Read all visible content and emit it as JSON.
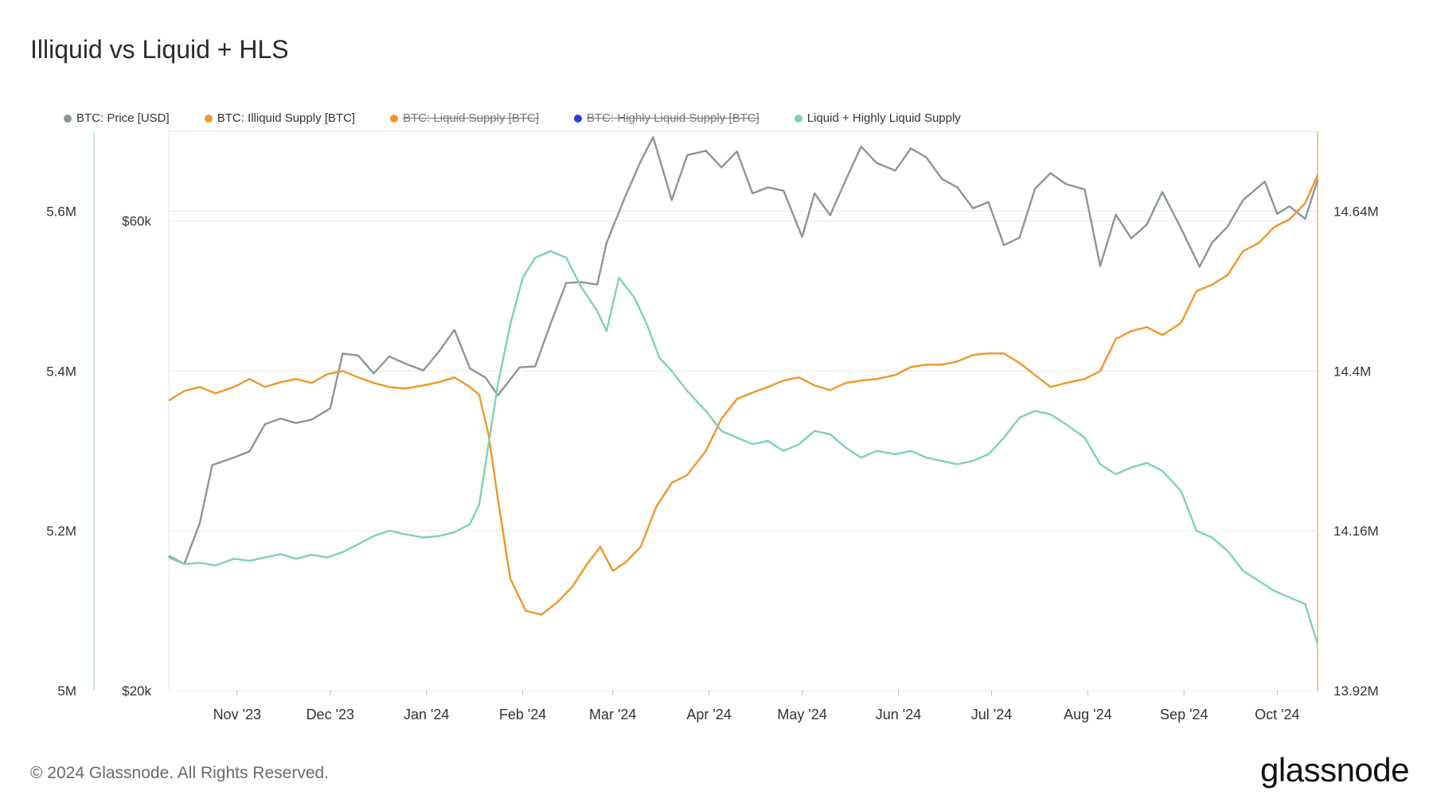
{
  "title": "Illiquid vs Liquid + HLS",
  "legend": [
    {
      "label": "BTC: Price [USD]",
      "color": "#8a959c",
      "hidden": false
    },
    {
      "label": "BTC: Illiquid Supply [BTC]",
      "color": "#f0962a",
      "hidden": false
    },
    {
      "label": "BTC: Liquid Supply [BTC]",
      "color": "#f0962a",
      "hidden": true
    },
    {
      "label": "BTC: Highly Liquid Supply [BTC]",
      "color": "#2a3fd8",
      "hidden": true
    },
    {
      "label": "Liquid + Highly Liquid Supply",
      "color": "#7dd3b0",
      "hidden": false
    }
  ],
  "footer": "© 2024 Glassnode. All Rights Reserved.",
  "brand": "glassnode",
  "chart_data": {
    "type": "line",
    "x_ticks": [
      "Nov '23",
      "Dec '23",
      "Jan '24",
      "Feb '24",
      "Mar '24",
      "Apr '24",
      "May '24",
      "Jun '24",
      "Jul '24",
      "Aug '24",
      "Sep '24",
      "Oct '24"
    ],
    "x_range": [
      "2023-10-10",
      "2024-10-14"
    ],
    "left_axis_outer": {
      "ticks": [
        "5M",
        "5.2M",
        "5.4M",
        "5.6M"
      ],
      "range": [
        5000000,
        5700000
      ]
    },
    "left_axis_inner": {
      "ticks": [
        "$20k",
        "$60k"
      ],
      "range": [
        20000,
        74000
      ],
      "scale": "log"
    },
    "right_axis": {
      "ticks": [
        "13.92M",
        "14.16M",
        "14.4M",
        "14.64M"
      ],
      "range": [
        13920000,
        14760000
      ]
    },
    "grid": true,
    "series": [
      {
        "name": "BTC: Price [USD]",
        "axis": "price",
        "color": "#8a959c",
        "points": [
          [
            "2023-10-10",
            27400
          ],
          [
            "2023-10-15",
            26900
          ],
          [
            "2023-10-20",
            29600
          ],
          [
            "2023-10-24",
            33900
          ],
          [
            "2023-10-31",
            34500
          ],
          [
            "2023-11-05",
            35000
          ],
          [
            "2023-11-10",
            37300
          ],
          [
            "2023-11-15",
            37800
          ],
          [
            "2023-11-20",
            37400
          ],
          [
            "2023-11-25",
            37700
          ],
          [
            "2023-12-01",
            38700
          ],
          [
            "2023-12-05",
            44000
          ],
          [
            "2023-12-10",
            43800
          ],
          [
            "2023-12-15",
            42000
          ],
          [
            "2023-12-20",
            43700
          ],
          [
            "2023-12-25",
            43000
          ],
          [
            "2023-12-31",
            42300
          ],
          [
            "2024-01-05",
            44200
          ],
          [
            "2024-01-10",
            46500
          ],
          [
            "2024-01-15",
            42500
          ],
          [
            "2024-01-20",
            41600
          ],
          [
            "2024-01-24",
            39900
          ],
          [
            "2024-01-31",
            42600
          ],
          [
            "2024-02-05",
            42700
          ],
          [
            "2024-02-10",
            47200
          ],
          [
            "2024-02-15",
            51900
          ],
          [
            "2024-02-20",
            52000
          ],
          [
            "2024-02-25",
            51700
          ],
          [
            "2024-02-28",
            57000
          ],
          [
            "2024-03-05",
            63500
          ],
          [
            "2024-03-10",
            69000
          ],
          [
            "2024-03-14",
            73000
          ],
          [
            "2024-03-20",
            63000
          ],
          [
            "2024-03-25",
            70000
          ],
          [
            "2024-03-31",
            70700
          ],
          [
            "2024-04-05",
            68000
          ],
          [
            "2024-04-10",
            70600
          ],
          [
            "2024-04-15",
            64000
          ],
          [
            "2024-04-20",
            64900
          ],
          [
            "2024-04-25",
            64400
          ],
          [
            "2024-05-01",
            57800
          ],
          [
            "2024-05-05",
            64000
          ],
          [
            "2024-05-10",
            60800
          ],
          [
            "2024-05-15",
            66000
          ],
          [
            "2024-05-20",
            71400
          ],
          [
            "2024-05-25",
            68700
          ],
          [
            "2024-05-31",
            67500
          ],
          [
            "2024-06-05",
            71100
          ],
          [
            "2024-06-10",
            69600
          ],
          [
            "2024-06-15",
            66200
          ],
          [
            "2024-06-20",
            64900
          ],
          [
            "2024-06-25",
            61800
          ],
          [
            "2024-06-30",
            62700
          ],
          [
            "2024-07-05",
            56700
          ],
          [
            "2024-07-10",
            57700
          ],
          [
            "2024-07-15",
            64700
          ],
          [
            "2024-07-20",
            67100
          ],
          [
            "2024-07-25",
            65400
          ],
          [
            "2024-07-31",
            64600
          ],
          [
            "2024-08-05",
            54000
          ],
          [
            "2024-08-10",
            60900
          ],
          [
            "2024-08-15",
            57600
          ],
          [
            "2024-08-20",
            59500
          ],
          [
            "2024-08-25",
            64200
          ],
          [
            "2024-08-31",
            59000
          ],
          [
            "2024-09-06",
            53900
          ],
          [
            "2024-09-10",
            57000
          ],
          [
            "2024-09-15",
            59200
          ],
          [
            "2024-09-20",
            63000
          ],
          [
            "2024-09-27",
            65800
          ],
          [
            "2024-10-01",
            61000
          ],
          [
            "2024-10-05",
            62100
          ],
          [
            "2024-10-10",
            60300
          ],
          [
            "2024-10-14",
            66000
          ]
        ]
      },
      {
        "name": "BTC: Illiquid Supply [BTC]",
        "axis": "left",
        "color": "#f0962a",
        "points": [
          [
            "2023-10-10",
            5363000
          ],
          [
            "2023-10-15",
            5375000
          ],
          [
            "2023-10-20",
            5380000
          ],
          [
            "2023-10-25",
            5372000
          ],
          [
            "2023-10-31",
            5380000
          ],
          [
            "2023-11-05",
            5390000
          ],
          [
            "2023-11-10",
            5380000
          ],
          [
            "2023-11-15",
            5386000
          ],
          [
            "2023-11-20",
            5390000
          ],
          [
            "2023-11-25",
            5385000
          ],
          [
            "2023-11-30",
            5396000
          ],
          [
            "2023-12-05",
            5400000
          ],
          [
            "2023-12-10",
            5392000
          ],
          [
            "2023-12-15",
            5385000
          ],
          [
            "2023-12-20",
            5380000
          ],
          [
            "2023-12-25",
            5378000
          ],
          [
            "2023-12-31",
            5382000
          ],
          [
            "2024-01-05",
            5386000
          ],
          [
            "2024-01-10",
            5392000
          ],
          [
            "2024-01-15",
            5380000
          ],
          [
            "2024-01-18",
            5370000
          ],
          [
            "2024-01-21",
            5320000
          ],
          [
            "2024-01-24",
            5240000
          ],
          [
            "2024-01-28",
            5140000
          ],
          [
            "2024-02-02",
            5100000
          ],
          [
            "2024-02-07",
            5095000
          ],
          [
            "2024-02-12",
            5110000
          ],
          [
            "2024-02-17",
            5130000
          ],
          [
            "2024-02-22",
            5160000
          ],
          [
            "2024-02-26",
            5180000
          ],
          [
            "2024-03-01",
            5150000
          ],
          [
            "2024-03-05",
            5160000
          ],
          [
            "2024-03-10",
            5180000
          ],
          [
            "2024-03-15",
            5230000
          ],
          [
            "2024-03-20",
            5260000
          ],
          [
            "2024-03-25",
            5270000
          ],
          [
            "2024-03-31",
            5300000
          ],
          [
            "2024-04-05",
            5340000
          ],
          [
            "2024-04-10",
            5365000
          ],
          [
            "2024-04-15",
            5373000
          ],
          [
            "2024-04-20",
            5380000
          ],
          [
            "2024-04-25",
            5388000
          ],
          [
            "2024-04-30",
            5392000
          ],
          [
            "2024-05-05",
            5382000
          ],
          [
            "2024-05-10",
            5376000
          ],
          [
            "2024-05-15",
            5385000
          ],
          [
            "2024-05-20",
            5388000
          ],
          [
            "2024-05-25",
            5390000
          ],
          [
            "2024-05-31",
            5395000
          ],
          [
            "2024-06-05",
            5405000
          ],
          [
            "2024-06-10",
            5408000
          ],
          [
            "2024-06-15",
            5408000
          ],
          [
            "2024-06-20",
            5412000
          ],
          [
            "2024-06-25",
            5420000
          ],
          [
            "2024-06-30",
            5422000
          ],
          [
            "2024-07-05",
            5422000
          ],
          [
            "2024-07-10",
            5410000
          ],
          [
            "2024-07-15",
            5395000
          ],
          [
            "2024-07-20",
            5380000
          ],
          [
            "2024-07-25",
            5385000
          ],
          [
            "2024-07-31",
            5390000
          ],
          [
            "2024-08-05",
            5400000
          ],
          [
            "2024-08-10",
            5440000
          ],
          [
            "2024-08-15",
            5450000
          ],
          [
            "2024-08-20",
            5455000
          ],
          [
            "2024-08-25",
            5445000
          ],
          [
            "2024-08-31",
            5460000
          ],
          [
            "2024-09-05",
            5500000
          ],
          [
            "2024-09-10",
            5508000
          ],
          [
            "2024-09-15",
            5520000
          ],
          [
            "2024-09-20",
            5550000
          ],
          [
            "2024-09-25",
            5560000
          ],
          [
            "2024-09-30",
            5580000
          ],
          [
            "2024-10-05",
            5590000
          ],
          [
            "2024-10-10",
            5610000
          ],
          [
            "2024-10-14",
            5645000
          ]
        ]
      },
      {
        "name": "Liquid + Highly Liquid Supply",
        "axis": "right",
        "color": "#7dd3b0",
        "points": [
          [
            "2023-10-10",
            14120000
          ],
          [
            "2023-10-15",
            14110000
          ],
          [
            "2023-10-20",
            14112000
          ],
          [
            "2023-10-25",
            14108000
          ],
          [
            "2023-10-31",
            14118000
          ],
          [
            "2023-11-05",
            14115000
          ],
          [
            "2023-11-10",
            14120000
          ],
          [
            "2023-11-15",
            14125000
          ],
          [
            "2023-11-20",
            14118000
          ],
          [
            "2023-11-25",
            14124000
          ],
          [
            "2023-11-30",
            14120000
          ],
          [
            "2023-12-05",
            14128000
          ],
          [
            "2023-12-10",
            14140000
          ],
          [
            "2023-12-15",
            14152000
          ],
          [
            "2023-12-20",
            14160000
          ],
          [
            "2023-12-25",
            14155000
          ],
          [
            "2023-12-31",
            14150000
          ],
          [
            "2024-01-05",
            14152000
          ],
          [
            "2024-01-10",
            14158000
          ],
          [
            "2024-01-15",
            14170000
          ],
          [
            "2024-01-18",
            14200000
          ],
          [
            "2024-01-21",
            14290000
          ],
          [
            "2024-01-24",
            14380000
          ],
          [
            "2024-01-28",
            14470000
          ],
          [
            "2024-02-01",
            14540000
          ],
          [
            "2024-02-05",
            14570000
          ],
          [
            "2024-02-10",
            14580000
          ],
          [
            "2024-02-15",
            14570000
          ],
          [
            "2024-02-20",
            14525000
          ],
          [
            "2024-02-25",
            14490000
          ],
          [
            "2024-02-28",
            14460000
          ],
          [
            "2024-03-03",
            14540000
          ],
          [
            "2024-03-08",
            14510000
          ],
          [
            "2024-03-12",
            14470000
          ],
          [
            "2024-03-16",
            14420000
          ],
          [
            "2024-03-20",
            14400000
          ],
          [
            "2024-03-25",
            14370000
          ],
          [
            "2024-03-31",
            14340000
          ],
          [
            "2024-04-05",
            14310000
          ],
          [
            "2024-04-10",
            14300000
          ],
          [
            "2024-04-15",
            14290000
          ],
          [
            "2024-04-20",
            14295000
          ],
          [
            "2024-04-25",
            14280000
          ],
          [
            "2024-04-30",
            14290000
          ],
          [
            "2024-05-05",
            14310000
          ],
          [
            "2024-05-10",
            14305000
          ],
          [
            "2024-05-15",
            14285000
          ],
          [
            "2024-05-20",
            14270000
          ],
          [
            "2024-05-25",
            14280000
          ],
          [
            "2024-05-31",
            14275000
          ],
          [
            "2024-06-05",
            14280000
          ],
          [
            "2024-06-10",
            14270000
          ],
          [
            "2024-06-15",
            14265000
          ],
          [
            "2024-06-20",
            14260000
          ],
          [
            "2024-06-25",
            14265000
          ],
          [
            "2024-06-30",
            14275000
          ],
          [
            "2024-07-05",
            14300000
          ],
          [
            "2024-07-10",
            14330000
          ],
          [
            "2024-07-15",
            14340000
          ],
          [
            "2024-07-20",
            14335000
          ],
          [
            "2024-07-25",
            14320000
          ],
          [
            "2024-07-31",
            14300000
          ],
          [
            "2024-08-05",
            14260000
          ],
          [
            "2024-08-10",
            14245000
          ],
          [
            "2024-08-15",
            14255000
          ],
          [
            "2024-08-20",
            14262000
          ],
          [
            "2024-08-25",
            14250000
          ],
          [
            "2024-08-31",
            14220000
          ],
          [
            "2024-09-05",
            14160000
          ],
          [
            "2024-09-10",
            14150000
          ],
          [
            "2024-09-15",
            14130000
          ],
          [
            "2024-09-20",
            14100000
          ],
          [
            "2024-09-25",
            14085000
          ],
          [
            "2024-09-30",
            14070000
          ],
          [
            "2024-10-05",
            14060000
          ],
          [
            "2024-10-10",
            14050000
          ],
          [
            "2024-10-14",
            13990000
          ]
        ]
      }
    ]
  }
}
